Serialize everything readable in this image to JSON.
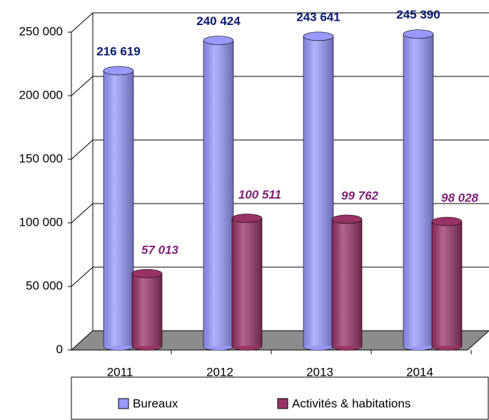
{
  "chart_data": {
    "type": "bar",
    "categories": [
      "2011",
      "2012",
      "2013",
      "2014"
    ],
    "series": [
      {
        "name": "Bureaux",
        "color": "#9999ff",
        "values": [
          216619,
          240424,
          243641,
          245390
        ],
        "value_labels": [
          "216 619",
          "240 424",
          "243 641",
          "245 390"
        ]
      },
      {
        "name": "Activités & habitations",
        "color": "#993366",
        "values": [
          57013,
          100511,
          99762,
          98028
        ],
        "value_labels": [
          "57 013",
          "100 511",
          "99 762",
          "98 028"
        ]
      }
    ],
    "ylim": [
      0,
      250000
    ],
    "yticks": [
      0,
      {
        "value": 50000,
        "label": "50 000"
      },
      {
        "value": 100000,
        "label": "100 000"
      },
      {
        "value": 150000,
        "label": "150 000"
      },
      {
        "value": 200000,
        "label": "200 000"
      },
      {
        "value": 250000,
        "label": "250 000"
      }
    ],
    "grid": true,
    "legend": "bottom"
  }
}
